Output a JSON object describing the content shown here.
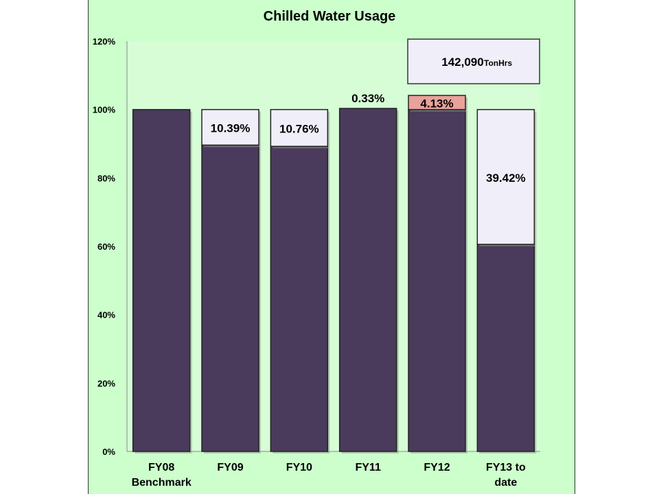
{
  "chart_data": {
    "type": "bar",
    "stacked": true,
    "title": "Chilled Water Usage",
    "xlabel": "",
    "ylabel": "",
    "ylim": [
      0,
      120
    ],
    "yticks": [
      "0%",
      "20%",
      "40%",
      "60%",
      "80%",
      "100%",
      "120%"
    ],
    "grid": false,
    "categories": [
      "FY08 Benchmark",
      "FY09",
      "FY10",
      "FY11",
      "FY12",
      "FY13 to date"
    ],
    "series": [
      {
        "values": [
          100,
          89.61,
          89.24,
          100.33,
          100,
          60.58
        ]
      },
      {
        "values": [
          0,
          10.39,
          10.76,
          0,
          0,
          39.42
        ]
      },
      {
        "values": [
          0,
          0,
          0,
          0,
          4.13,
          0
        ]
      }
    ],
    "data_labels": [
      "",
      "10.39%",
      "10.76%",
      "0.33%",
      "4.13%",
      "39.42%"
    ],
    "annotation": {
      "value": "142,090",
      "unit": "TonHrs"
    },
    "colors": {
      "usage": "#4a3a5c",
      "savings": "#f0eef8",
      "increase": "#e8a29a",
      "background": "#ccffcc",
      "plot_area": "#d6fdd6"
    }
  }
}
